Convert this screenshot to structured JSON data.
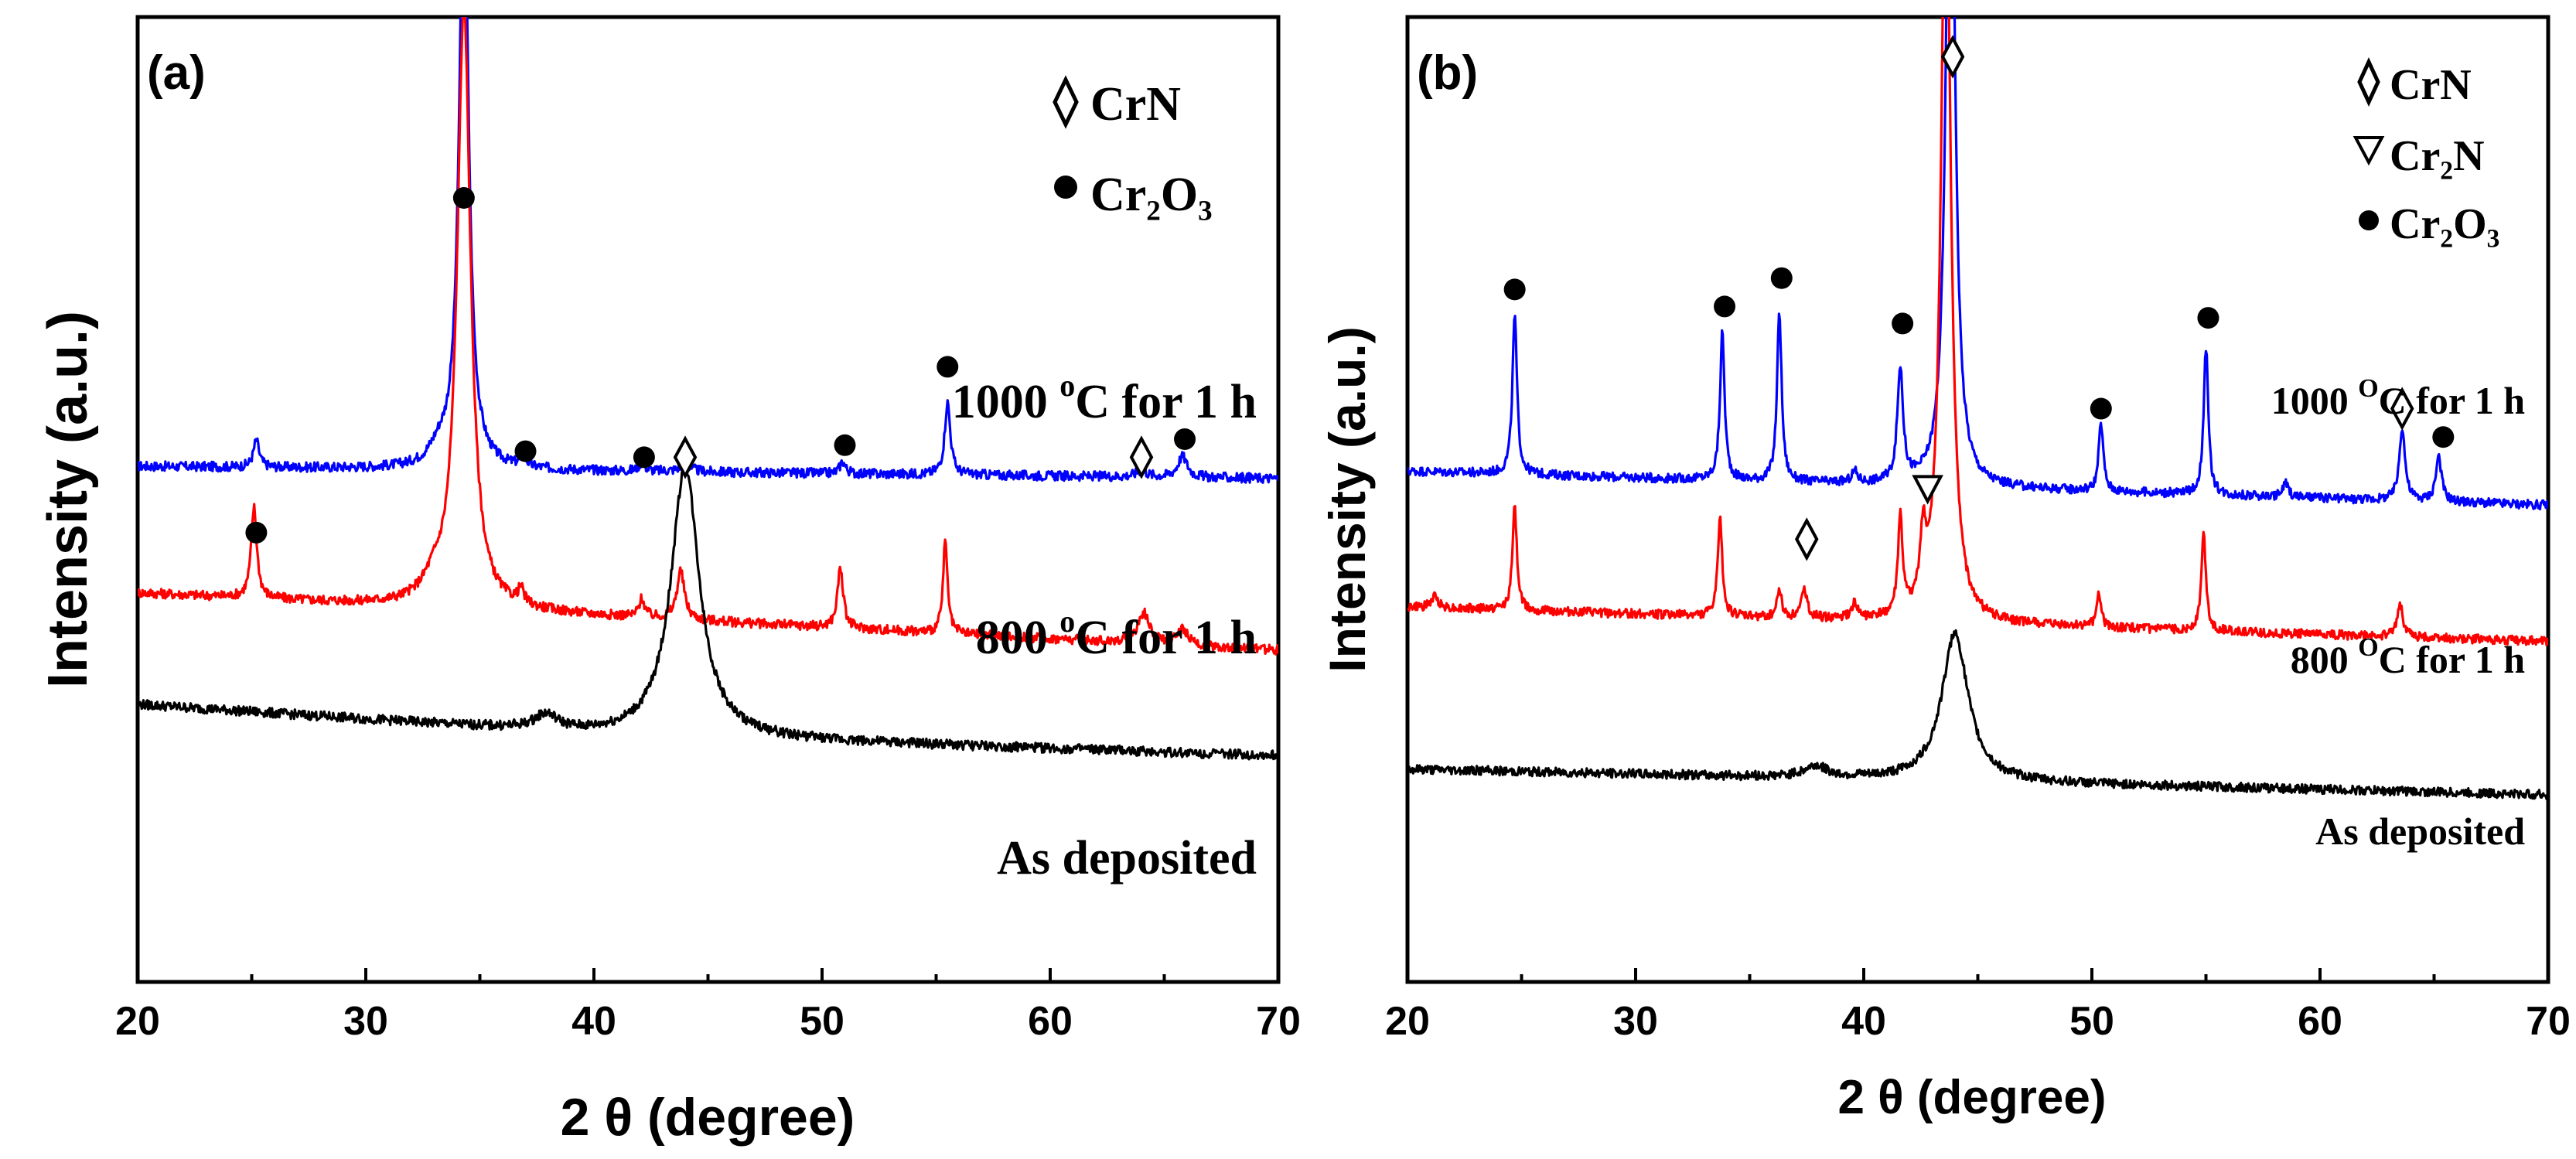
{
  "chart_data": [
    {
      "panel": "(a)",
      "type": "line",
      "xlabel": "2 θ (degree)",
      "ylabel": "Intensity (a.u.)",
      "xlim": [
        20,
        70
      ],
      "xticks": [
        20,
        30,
        40,
        50,
        60,
        70
      ],
      "xtick_labels": [
        "20",
        "30",
        "40",
        "50",
        "60",
        "70"
      ],
      "legend": [
        {
          "symbol": "◊",
          "label": "CrN"
        },
        {
          "symbol": "●",
          "label": "Cr₂O₃"
        }
      ],
      "series": [
        {
          "name": "1000 °C for 1 h",
          "label_main": "1000 ",
          "label_sup": "o",
          "label_tail": "C for 1 h",
          "color": "#0000ff",
          "baseline": [
            [
              20,
              8.55
            ],
            [
              70,
              8.35
            ]
          ],
          "peaks": [
            [
              25.2,
              0.45,
              0.15
            ],
            [
              33.2,
              0.25,
              0.5
            ],
            [
              34.3,
              10,
              0.25
            ],
            [
              36.9,
              0.18,
              0.15
            ],
            [
              42.1,
              0.15,
              0.15
            ],
            [
              44,
              0.12,
              0.3
            ],
            [
              50.9,
              0.2,
              0.15
            ],
            [
              55.5,
              1.2,
              0.15
            ],
            [
              64,
              0.1,
              0.3
            ],
            [
              65.8,
              0.35,
              0.25
            ]
          ]
        },
        {
          "name": "800 °C for 1 h",
          "label_main": "800 ",
          "label_sup": "o",
          "label_tail": "C for 1 h",
          "color": "#ff0000",
          "baseline": [
            [
              20,
              6.45
            ],
            [
              70,
              5.5
            ]
          ],
          "peaks": [
            [
              25.1,
              1.5,
              0.15
            ],
            [
              34.3,
              10,
              0.35
            ],
            [
              33,
              0.3,
              0.6
            ],
            [
              36.8,
              0.25,
              0.15
            ],
            [
              42.1,
              0.3,
              0.15
            ],
            [
              43.8,
              0.8,
              0.2
            ],
            [
              50.8,
              1.0,
              0.15
            ],
            [
              55.4,
              1.5,
              0.12
            ],
            [
              64.1,
              0.5,
              0.3
            ],
            [
              65.8,
              0.25,
              0.3
            ]
          ]
        },
        {
          "name": "As deposited",
          "label_main": "As deposited",
          "color": "#000000",
          "baseline": [
            [
              20,
              4.6
            ],
            [
              40,
              4.1
            ],
            [
              70,
              3.75
            ]
          ],
          "peaks": [
            [
              44,
              4.5,
              0.75
            ],
            [
              37.9,
              0.25,
              0.6
            ]
          ]
        }
      ],
      "markers": [
        {
          "phase": "Cr2O3",
          "symbol": "dot",
          "x": 25.2,
          "y": 7.45
        },
        {
          "phase": "Cr2O3",
          "symbol": "dot",
          "x": 34.3,
          "y": 13.0
        },
        {
          "phase": "Cr2O3",
          "symbol": "dot",
          "x": 37.0,
          "y": 8.8
        },
        {
          "phase": "Cr2O3",
          "symbol": "dot",
          "x": 42.2,
          "y": 8.7
        },
        {
          "phase": "CrN",
          "symbol": "diamond",
          "x": 44.0,
          "y": 8.7
        },
        {
          "phase": "Cr2O3",
          "symbol": "dot",
          "x": 51.0,
          "y": 8.9
        },
        {
          "phase": "Cr2O3",
          "symbol": "dot",
          "x": 55.5,
          "y": 10.2
        },
        {
          "phase": "CrN",
          "symbol": "diamond",
          "x": 64.0,
          "y": 8.7
        },
        {
          "phase": "Cr2O3",
          "symbol": "dot",
          "x": 65.9,
          "y": 9.0
        }
      ]
    },
    {
      "panel": "(b)",
      "type": "line",
      "xlabel": "2 θ (degree)",
      "ylabel": "Intensity (a.u.)",
      "xlim": [
        20,
        70
      ],
      "xticks": [
        20,
        30,
        40,
        50,
        60,
        70
      ],
      "xtick_labels": [
        "20",
        "30",
        "40",
        "50",
        "60",
        "70"
      ],
      "legend": [
        {
          "symbol": "◊",
          "label": "CrN"
        },
        {
          "symbol": "∇",
          "label": "Cr₂N"
        },
        {
          "symbol": "●",
          "label": "Cr₂O₃"
        }
      ],
      "series": [
        {
          "name": "1000 °C for 1 h",
          "label_main": "1000 ",
          "label_sup": "O",
          "label_tail": "C for 1 h",
          "color": "#0000ff",
          "baseline": [
            [
              20,
              9.0
            ],
            [
              70,
              8.4
            ]
          ],
          "peaks": [
            [
              24.7,
              2.8,
              0.12
            ],
            [
              33.8,
              2.6,
              0.12
            ],
            [
              36.3,
              3.0,
              0.12
            ],
            [
              39.6,
              0.2,
              0.15
            ],
            [
              41.6,
              2.0,
              0.15
            ],
            [
              43.8,
              14,
              0.22
            ],
            [
              50.4,
              1.2,
              0.12
            ],
            [
              55,
              2.6,
              0.12
            ],
            [
              58.5,
              0.25,
              0.15
            ],
            [
              63.6,
              1.3,
              0.15
            ],
            [
              65.2,
              0.8,
              0.15
            ]
          ]
        },
        {
          "name": "800 °C for 1 h",
          "label_main": "800 ",
          "label_sup": "O",
          "label_tail": "C for 1 h",
          "color": "#ff0000",
          "baseline": [
            [
              20,
              6.6
            ],
            [
              70,
              6.0
            ]
          ],
          "peaks": [
            [
              21.2,
              0.2,
              0.2
            ],
            [
              24.7,
              1.8,
              0.12
            ],
            [
              33.7,
              1.7,
              0.12
            ],
            [
              36.3,
              0.5,
              0.12
            ],
            [
              37.4,
              0.5,
              0.15
            ],
            [
              39.6,
              0.25,
              0.15
            ],
            [
              41.6,
              1.7,
              0.12
            ],
            [
              42.6,
              1.2,
              0.15
            ],
            [
              43.6,
              14,
              0.25
            ],
            [
              50.3,
              0.6,
              0.12
            ],
            [
              54.9,
              1.7,
              0.12
            ],
            [
              63.5,
              0.6,
              0.15
            ]
          ]
        },
        {
          "name": "As deposited",
          "label_main": "As deposited",
          "color": "#000000",
          "baseline": [
            [
              20,
              3.75
            ],
            [
              70,
              3.3
            ]
          ],
          "peaks": [
            [
              44,
              2.6,
              0.7
            ],
            [
              37.9,
              0.2,
              0.6
            ]
          ]
        }
      ],
      "markers": [
        {
          "phase": "Cr2O3",
          "symbol": "dot",
          "x": 24.7,
          "y": 12.2
        },
        {
          "phase": "Cr2O3",
          "symbol": "dot",
          "x": 33.9,
          "y": 11.9
        },
        {
          "phase": "Cr2O3",
          "symbol": "dot",
          "x": 36.4,
          "y": 12.4
        },
        {
          "phase": "Cr2O3",
          "symbol": "dot",
          "x": 41.7,
          "y": 11.6
        },
        {
          "phase": "CrN",
          "symbol": "diamond",
          "x": 43.9,
          "y": 16.3
        },
        {
          "phase": "Cr2O3",
          "symbol": "dot",
          "x": 50.4,
          "y": 10.1
        },
        {
          "phase": "Cr2O3",
          "symbol": "dot",
          "x": 55.1,
          "y": 11.7
        },
        {
          "phase": "CrN",
          "symbol": "diamond",
          "x": 63.6,
          "y": 10.1
        },
        {
          "phase": "Cr2O3",
          "symbol": "dot",
          "x": 65.4,
          "y": 9.6
        },
        {
          "phase": "CrN",
          "symbol": "diamond",
          "x": 37.5,
          "y": 7.8
        },
        {
          "phase": "Cr2N",
          "symbol": "triangle-down",
          "x": 42.8,
          "y": 8.7
        }
      ]
    }
  ]
}
